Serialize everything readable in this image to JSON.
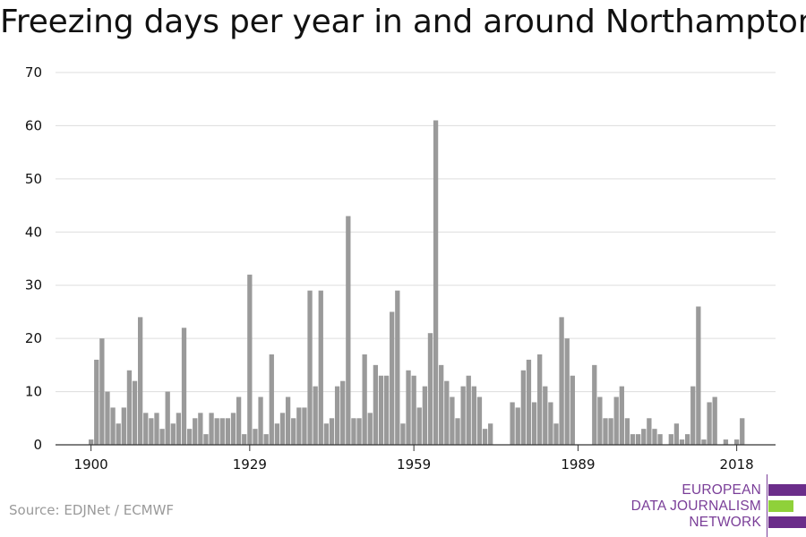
{
  "title": "Freezing days per year in and around Northampton",
  "source": "Source: EDJNet / ECMWF",
  "logo": {
    "line1": "EUROPEAN",
    "line2": "DATA JOURNALISM",
    "line3": "NETWORK",
    "purple": "#6b2d8a",
    "green": "#8fd13a"
  },
  "colors": {
    "bar": "#9a9a9a",
    "grid": "#dddddd",
    "axis": "#333333",
    "text": "#111111"
  },
  "chart_data": {
    "type": "bar",
    "title": "Freezing days per year in and around Northampton",
    "xlabel": "",
    "ylabel": "",
    "ylim": [
      0,
      70
    ],
    "yticks": [
      0,
      10,
      20,
      30,
      40,
      50,
      60,
      70
    ],
    "xticks": [
      1900,
      1929,
      1959,
      1989,
      2018
    ],
    "grid": true,
    "x": [
      1900,
      1901,
      1902,
      1903,
      1904,
      1905,
      1906,
      1907,
      1908,
      1909,
      1910,
      1911,
      1912,
      1913,
      1914,
      1915,
      1916,
      1917,
      1918,
      1919,
      1920,
      1921,
      1922,
      1923,
      1924,
      1925,
      1926,
      1927,
      1928,
      1929,
      1930,
      1931,
      1932,
      1933,
      1934,
      1935,
      1936,
      1937,
      1938,
      1939,
      1940,
      1941,
      1942,
      1943,
      1944,
      1945,
      1946,
      1947,
      1948,
      1949,
      1950,
      1951,
      1952,
      1953,
      1954,
      1955,
      1956,
      1957,
      1958,
      1959,
      1960,
      1961,
      1962,
      1963,
      1964,
      1965,
      1966,
      1967,
      1968,
      1969,
      1970,
      1971,
      1972,
      1973,
      1974,
      1975,
      1976,
      1977,
      1978,
      1979,
      1980,
      1981,
      1982,
      1983,
      1984,
      1985,
      1986,
      1987,
      1988,
      1989,
      1990,
      1991,
      1992,
      1993,
      1994,
      1995,
      1996,
      1997,
      1998,
      1999,
      2000,
      2001,
      2002,
      2003,
      2004,
      2005,
      2006,
      2007,
      2008,
      2009,
      2010,
      2011,
      2012,
      2013,
      2014,
      2015,
      2016,
      2017,
      2018,
      2019
    ],
    "values": [
      1,
      16,
      20,
      10,
      7,
      4,
      7,
      14,
      12,
      24,
      6,
      5,
      6,
      3,
      10,
      4,
      6,
      22,
      3,
      5,
      6,
      2,
      6,
      5,
      5,
      5,
      6,
      9,
      2,
      32,
      3,
      9,
      2,
      17,
      4,
      6,
      9,
      5,
      7,
      7,
      29,
      11,
      29,
      4,
      5,
      11,
      12,
      43,
      5,
      5,
      17,
      6,
      15,
      13,
      13,
      25,
      29,
      4,
      14,
      13,
      7,
      11,
      21,
      61,
      15,
      12,
      9,
      5,
      11,
      13,
      11,
      9,
      3,
      4,
      0,
      0,
      0,
      8,
      7,
      14,
      16,
      8,
      17,
      11,
      8,
      4,
      24,
      20,
      13,
      0,
      0,
      0,
      15,
      9,
      5,
      5,
      9,
      11,
      5,
      2,
      2,
      3,
      5,
      3,
      2,
      0,
      2,
      4,
      1,
      2,
      11,
      26,
      1,
      8,
      9,
      0,
      1,
      0,
      1,
      5
    ]
  }
}
